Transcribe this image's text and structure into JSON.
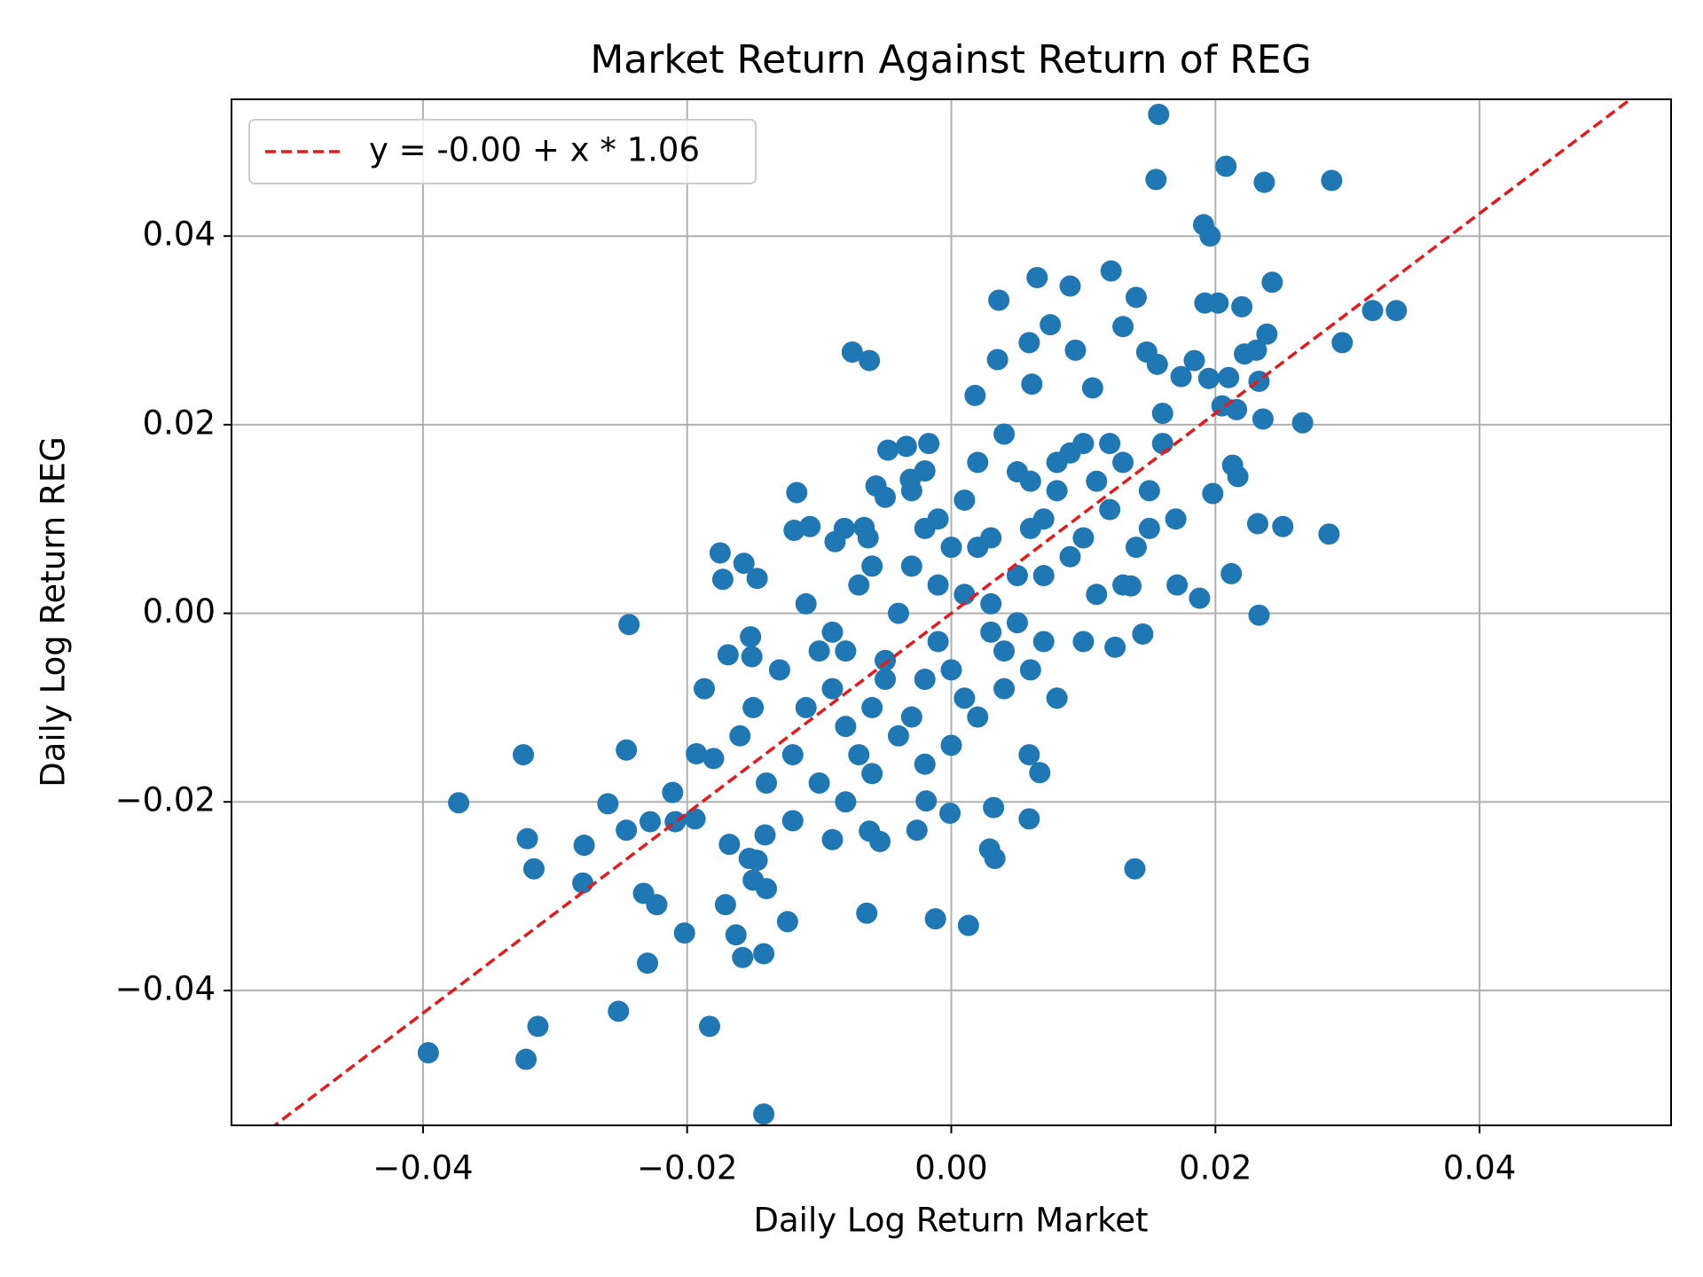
{
  "chart_data": {
    "type": "scatter",
    "title": "Market Return Against Return of REG",
    "xlabel": "Daily Log Return Market",
    "ylabel": "Daily Log Return REG",
    "color": "#1f77b4",
    "xlim": [
      -0.0545,
      0.0545
    ],
    "ylim": [
      -0.0543,
      0.0545
    ],
    "xticks": [
      {
        "value": -0.04,
        "label": "−0.04"
      },
      {
        "value": -0.02,
        "label": "−0.02"
      },
      {
        "value": 0,
        "label": "0.00"
      },
      {
        "value": 0.02,
        "label": "0.02"
      },
      {
        "value": 0.04,
        "label": "0.04"
      }
    ],
    "yticks": [
      {
        "value": -0.04,
        "label": "−0.04"
      },
      {
        "value": -0.02,
        "label": "−0.02"
      },
      {
        "value": 0,
        "label": "0.00"
      },
      {
        "value": 0.02,
        "label": "0.02"
      },
      {
        "value": 0.04,
        "label": "0.04"
      }
    ],
    "grid": true,
    "legend": "upper left",
    "line": {
      "label": "y = -0.00 + x * 1.06",
      "intercept": 0,
      "slope": 1.06,
      "color": "#e41a1c"
    },
    "x": [
      0.0157,
      0.0155,
      0.0208,
      0.0237,
      0.0288,
      0.0191,
      0.0196,
      0.0065,
      0.009,
      0.0121,
      0.0036,
      0.014,
      0.0243,
      0.0192,
      0.0202,
      0.022,
      0.0319,
      0.0337,
      0.0296,
      0.0239,
      0.0075,
      0.013,
      -0.0075,
      -0.0062,
      0.0059,
      0.0035,
      0.0094,
      0.0148,
      0.0184,
      0.0222,
      0.0231,
      0.0156,
      0.0174,
      0.0195,
      0.0233,
      0.0018,
      0.0061,
      0.0107,
      0.021,
      0.0266,
      0.0236,
      0.016,
      0.0205,
      0.0216,
      0.0213,
      0.0217,
      0.0198,
      0.0232,
      0.0251,
      0.0286,
      0.0212,
      0.0188,
      0.0233,
      0.0171,
      0.0145,
      0.0124,
      0.0136,
      0.0139,
      0.0059,
      0.0032,
      0.0029,
      0.0033,
      -0.0026,
      -0.0001,
      -0.0012,
      0.0013,
      -0.0064,
      -0.0054,
      -0.0062,
      0.0067,
      0.0059,
      -0.0019,
      -0.0124,
      -0.0142,
      -0.0158,
      -0.0163,
      -0.0171,
      -0.0142,
      -0.0183,
      -0.0202,
      -0.0223,
      -0.023,
      -0.0233,
      -0.0252,
      -0.0313,
      -0.0322,
      -0.0396,
      -0.0316,
      -0.0321,
      -0.0278,
      -0.0279,
      -0.0373,
      -0.0324,
      -0.0246,
      -0.0244,
      -0.026,
      -0.0246,
      -0.0228,
      -0.0211,
      -0.0209,
      -0.0194,
      -0.0193,
      -0.0187,
      -0.018,
      -0.0175,
      -0.0173,
      -0.0157,
      -0.0147,
      -0.0169,
      -0.0152,
      -0.0151,
      -0.0153,
      -0.0147,
      -0.0168,
      -0.0141,
      -0.015,
      -0.014,
      -0.0117,
      -0.0119,
      -0.0107,
      -0.0081,
      -0.0088,
      -0.0066,
      -0.0063,
      -0.0048,
      -0.0034,
      -0.0017,
      -0.0057,
      -0.005,
      -0.0031,
      -0.002,
      -0.011,
      -0.01,
      -0.009,
      -0.008,
      -0.007,
      -0.006,
      -0.005,
      -0.004,
      -0.003,
      -0.002,
      -0.001,
      0.0,
      0.001,
      0.002,
      0.003,
      0.004,
      0.005,
      0.006,
      0.007,
      0.008,
      0.009,
      0.01,
      0.011,
      0.012,
      0.013,
      0.014,
      0.015,
      0.016,
      0.017,
      -0.012,
      -0.01,
      -0.008,
      -0.006,
      -0.004,
      -0.002,
      0.0,
      0.002,
      0.004,
      0.006,
      0.008,
      0.01,
      -0.013,
      -0.011,
      -0.009,
      -0.007,
      -0.005,
      -0.003,
      -0.001,
      0.001,
      0.003,
      0.005,
      0.007,
      0.009,
      0.011,
      0.013,
      0.015,
      0.002,
      0.004,
      0.006,
      0.008,
      -0.001,
      -0.003,
      -0.006,
      -0.008,
      0.0,
      0.001,
      -0.002,
      0.003,
      0.005,
      0.007,
      0.01,
      0.012,
      -0.015,
      -0.014,
      -0.016,
      -0.012,
      -0.009
    ],
    "y": [
      0.0529,
      0.046,
      0.0474,
      0.0457,
      0.0459,
      0.0412,
      0.04,
      0.0356,
      0.0347,
      0.0363,
      0.0332,
      0.0335,
      0.0351,
      0.0329,
      0.0329,
      0.0325,
      0.0321,
      0.0321,
      0.0287,
      0.0296,
      0.0306,
      0.0304,
      0.0277,
      0.0268,
      0.0287,
      0.0269,
      0.0279,
      0.0277,
      0.0268,
      0.0275,
      0.0279,
      0.0264,
      0.0251,
      0.0249,
      0.0246,
      0.0231,
      0.0243,
      0.0239,
      0.025,
      0.0202,
      0.0206,
      0.0212,
      0.022,
      0.0216,
      0.0157,
      0.0145,
      0.0127,
      0.0095,
      0.0092,
      0.0084,
      0.0042,
      0.0016,
      -0.0002,
      0.003,
      -0.0022,
      -0.0036,
      0.0029,
      -0.0271,
      -0.0218,
      -0.0206,
      -0.025,
      -0.026,
      -0.023,
      -0.0212,
      -0.0324,
      -0.0331,
      -0.0318,
      -0.0242,
      -0.0231,
      -0.0169,
      -0.015,
      -0.0199,
      -0.0327,
      -0.0361,
      -0.0365,
      -0.0341,
      -0.0309,
      -0.0531,
      -0.0438,
      -0.0339,
      -0.0309,
      -0.0371,
      -0.0297,
      -0.0422,
      -0.0438,
      -0.0473,
      -0.0466,
      -0.0271,
      -0.0239,
      -0.0246,
      -0.0286,
      -0.0201,
      -0.015,
      -0.0145,
      -0.0012,
      -0.0202,
      -0.023,
      -0.0221,
      -0.019,
      -0.0221,
      -0.0218,
      -0.0149,
      -0.008,
      -0.0154,
      0.0064,
      0.0036,
      0.0053,
      0.0037,
      -0.0044,
      -0.0025,
      -0.0046,
      -0.026,
      -0.0262,
      -0.0245,
      -0.0235,
      -0.0283,
      -0.0292,
      0.0128,
      0.0088,
      0.0092,
      0.009,
      0.0076,
      0.0091,
      0.008,
      0.0173,
      0.0177,
      0.018,
      0.0135,
      0.0123,
      0.0142,
      0.0151,
      0.001,
      -0.004,
      -0.008,
      -0.012,
      -0.015,
      -0.01,
      -0.005,
      0.0,
      0.005,
      0.009,
      0.003,
      -0.006,
      0.012,
      0.007,
      0.001,
      -0.004,
      0.015,
      0.009,
      0.004,
      0.013,
      0.017,
      0.008,
      0.002,
      0.011,
      0.016,
      0.007,
      0.013,
      0.018,
      0.01,
      -0.015,
      -0.018,
      -0.02,
      -0.017,
      -0.013,
      -0.016,
      -0.014,
      -0.011,
      -0.008,
      -0.006,
      -0.009,
      -0.003,
      -0.006,
      -0.01,
      -0.002,
      0.003,
      -0.007,
      -0.011,
      -0.003,
      0.002,
      0.008,
      0.004,
      0.01,
      0.006,
      0.014,
      0.003,
      0.009,
      0.016,
      0.019,
      0.014,
      0.016,
      0.01,
      0.013,
      0.005,
      -0.004,
      0.007,
      -0.009,
      -0.007,
      -0.002,
      -0.001,
      -0.003,
      0.018,
      0.018,
      -0.01,
      -0.018,
      -0.013,
      -0.022,
      -0.024
    ]
  }
}
